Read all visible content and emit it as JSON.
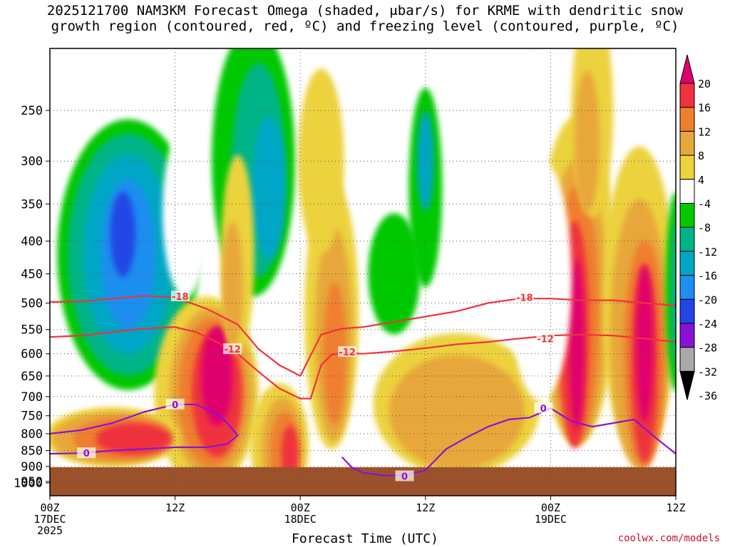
{
  "title": {
    "line1": "2025121700 NAM3KM Forecast Omega (shaded, μbar/s) for KRME with dendritic snow",
    "line2": "growth region (contoured, red, ºC) and freezing level (contoured, purple, ºC)"
  },
  "credit": "coolwx.com/models",
  "chart_data": {
    "type": "heatmap",
    "title": "2025121700 NAM3KM Forecast Omega (shaded, μbar/s) for KRME with dendritic snow growth region (contoured, red, ºC) and freezing level (contoured, purple, ºC)",
    "xlabel": "Forecast Time (UTC)",
    "ylabel": "",
    "x_ticks": [
      {
        "hour": 0,
        "label": [
          "00Z",
          "17DEC",
          "2025"
        ]
      },
      {
        "hour": 12,
        "label": [
          "12Z"
        ]
      },
      {
        "hour": 24,
        "label": [
          "00Z",
          "18DEC"
        ]
      },
      {
        "hour": 36,
        "label": [
          "12Z"
        ]
      },
      {
        "hour": 48,
        "label": [
          "00Z",
          "19DEC"
        ]
      },
      {
        "hour": 60,
        "label": [
          "12Z"
        ]
      }
    ],
    "xlim": [
      0,
      60
    ],
    "y_axis": "pressure (hPa), log scale, inverted",
    "ylim": [
      1000,
      200
    ],
    "y_ticks": [
      250,
      300,
      350,
      400,
      450,
      500,
      550,
      600,
      650,
      700,
      750,
      800,
      850,
      900,
      950,
      1000
    ],
    "colorbar": {
      "labels": [
        20,
        16,
        12,
        8,
        4,
        -4,
        -8,
        -12,
        -16,
        -20,
        -24,
        -28,
        -32,
        -36
      ],
      "colors": [
        "#e0006e",
        "#f0323c",
        "#ef7f2d",
        "#e7a73a",
        "#ecd23c",
        "#ffffff",
        "#06c800",
        "#00b488",
        "#00a6c6",
        "#1e8ef0",
        "#2046e6",
        "#8a12d6",
        "#a9a9a9",
        "#000000"
      ],
      "arrows": "triangular ends, magenta top, black bottom"
    },
    "series": [
      {
        "name": "-18",
        "type": "contour",
        "color": "#f0323c",
        "x": [
          0,
          3,
          6,
          9,
          12,
          15,
          18,
          20,
          22,
          24,
          26,
          28,
          30,
          33,
          36,
          39,
          42,
          45,
          48,
          51,
          54,
          57,
          60
        ],
        "y": [
          498,
          497,
          492,
          487,
          490,
          510,
          540,
          590,
          625,
          650,
          560,
          548,
          545,
          535,
          525,
          515,
          500,
          492,
          492,
          495,
          495,
          500,
          505
        ]
      },
      {
        "name": "-12",
        "type": "contour",
        "color": "#f0323c",
        "x": [
          0,
          3,
          6,
          9,
          12,
          14,
          16,
          18,
          20,
          22,
          24,
          25,
          26,
          27,
          28,
          30,
          33,
          36,
          39,
          42,
          45,
          48,
          51,
          54,
          57,
          60
        ],
        "y": [
          565,
          562,
          555,
          548,
          545,
          555,
          575,
          600,
          640,
          680,
          705,
          705,
          625,
          602,
          598,
          600,
          595,
          588,
          580,
          575,
          568,
          562,
          560,
          562,
          568,
          575
        ]
      },
      {
        "name": "0",
        "type": "contour",
        "color": "#8a12d6",
        "x": [
          0,
          3,
          6,
          9,
          12,
          14,
          16,
          17,
          18,
          17,
          15,
          12,
          9,
          6,
          3,
          0
        ],
        "y": [
          800,
          790,
          770,
          740,
          720,
          720,
          745,
          770,
          805,
          830,
          840,
          840,
          845,
          850,
          858,
          860
        ]
      },
      {
        "name": "0",
        "type": "contour",
        "color": "#8a12d6",
        "x": [
          28,
          29,
          30,
          32,
          34,
          36,
          38,
          40,
          42,
          44,
          46,
          48,
          50,
          52,
          54,
          56,
          58,
          60
        ],
        "y": [
          870,
          905,
          920,
          930,
          930,
          912,
          845,
          810,
          780,
          760,
          755,
          730,
          765,
          780,
          770,
          760,
          810,
          860
        ]
      }
    ],
    "contour_labels": [
      "-18",
      "-12",
      "0"
    ],
    "grid": true
  }
}
